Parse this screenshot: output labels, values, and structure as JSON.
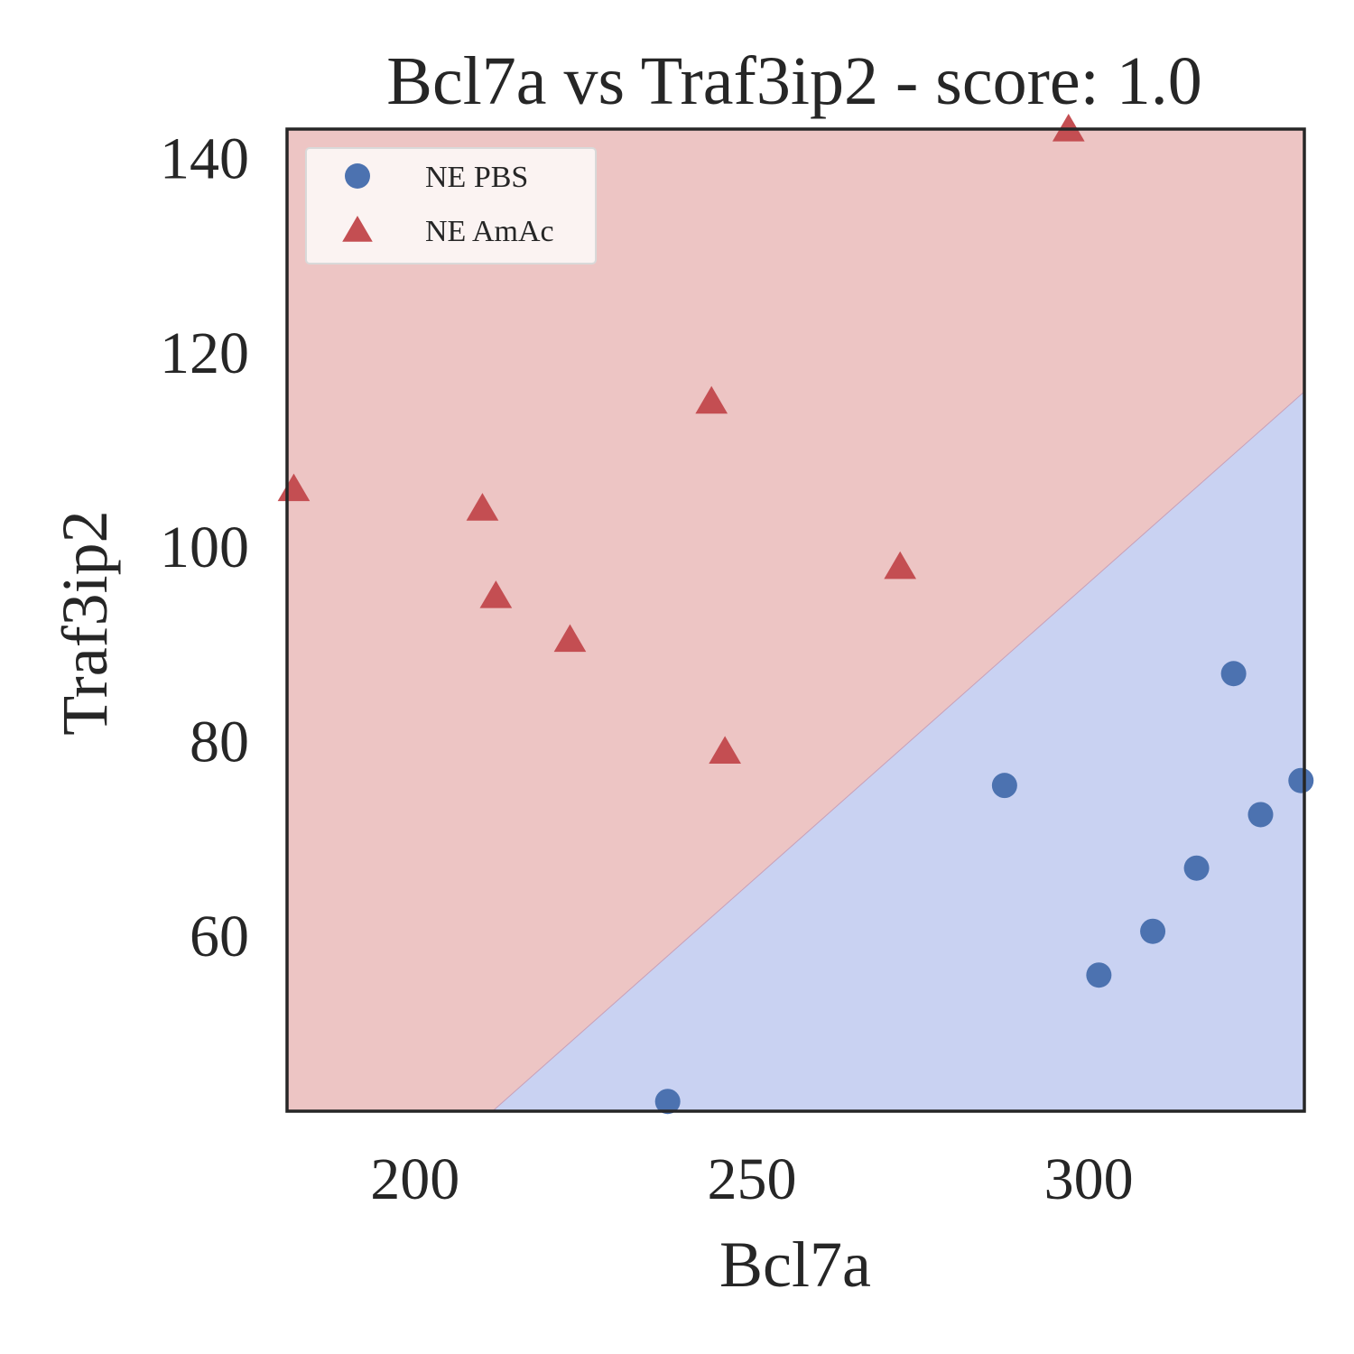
{
  "chart_data": {
    "type": "scatter",
    "title": "Bcl7a vs Traf3ip2 - score: 1.0",
    "xlabel": "Bcl7a",
    "ylabel": "Traf3ip2",
    "xlim": [
      181,
      332
    ],
    "ylim": [
      42,
      143
    ],
    "xticks": [
      200,
      250,
      300
    ],
    "yticks": [
      60,
      80,
      100,
      120,
      140
    ],
    "grid": false,
    "legend_position": "top-left",
    "decision_boundary": {
      "x": [
        211.5,
        332
      ],
      "y": [
        42,
        116
      ],
      "region_above": "NE AmAc",
      "region_below": "NE PBS",
      "color_above": "#edc5c4",
      "color_below": "#c9d2f2"
    },
    "series": [
      {
        "name": "NE PBS",
        "marker": "circle",
        "color": "#4c72b0",
        "x": [
          237.5,
          287.5,
          301.5,
          309.5,
          316,
          321.5,
          325.5,
          331.5
        ],
        "y": [
          43,
          75.5,
          56,
          60.5,
          67,
          87,
          72.5,
          76
        ]
      },
      {
        "name": "NE AmAc",
        "marker": "triangle",
        "color": "#c44e52",
        "x": [
          182,
          210,
          212,
          223,
          244,
          246,
          272,
          297
        ],
        "y": [
          106,
          104,
          95,
          90.5,
          115,
          79,
          98,
          143
        ]
      }
    ]
  }
}
